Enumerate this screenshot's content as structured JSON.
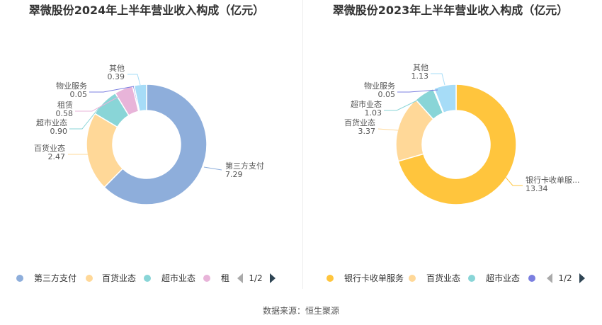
{
  "source": "数据来源：恒生聚源",
  "colors": {
    "title": "#333333",
    "label": "#555555",
    "legend_text": "#333333",
    "pager_active": "#2f4554",
    "pager_inactive": "#aaaaaa"
  },
  "chart_data": [
    {
      "type": "pie",
      "title": "翠微股份2024年上半年营业收入构成（亿元）",
      "unit": "亿元",
      "slices": [
        {
          "name": "第三方支付",
          "value": 7.29,
          "color": "#8eaedb"
        },
        {
          "name": "百货业态",
          "value": 2.47,
          "color": "#ffd898"
        },
        {
          "name": "超市业态",
          "value": 0.9,
          "color": "#89d5d7"
        },
        {
          "name": "租赁",
          "value": 0.58,
          "color": "#e8b4d9"
        },
        {
          "name": "物业服务",
          "value": 0.05,
          "color": "#7b7fe0"
        },
        {
          "name": "其他",
          "value": 0.39,
          "color": "#a6dcf7"
        }
      ],
      "value_labels": [
        "7.29",
        "2.47",
        "0.90",
        "0.58",
        "0.05",
        "0.39"
      ],
      "legend": {
        "position": "bottom",
        "visible_items": [
          "第三方支付",
          "百货业态",
          "超市业态",
          "租"
        ],
        "pager": "1/2"
      }
    },
    {
      "type": "pie",
      "title": "翠微股份2023年上半年营业收入构成（亿元）",
      "unit": "亿元",
      "slices": [
        {
          "name": "银行卡收单服务",
          "value": 13.34,
          "color": "#ffc53d"
        },
        {
          "name": "百货业态",
          "value": 3.37,
          "color": "#ffd898"
        },
        {
          "name": "超市业态",
          "value": 1.03,
          "color": "#89d5d7"
        },
        {
          "name": "物业服务",
          "value": 0.05,
          "color": "#7b7fe0"
        },
        {
          "name": "其他",
          "value": 1.13,
          "color": "#a6dcf7"
        }
      ],
      "display_names": [
        "银行卡收单服...",
        "百货业态",
        "超市业态",
        "物业服务",
        "其他"
      ],
      "value_labels": [
        "13.34",
        "3.37",
        "1.03",
        "0.05",
        "1.13"
      ],
      "legend": {
        "position": "bottom",
        "visible_items": [
          "银行卡收单服务",
          "百货业态",
          "超市业态",
          ""
        ],
        "pager": "1/2"
      }
    }
  ]
}
